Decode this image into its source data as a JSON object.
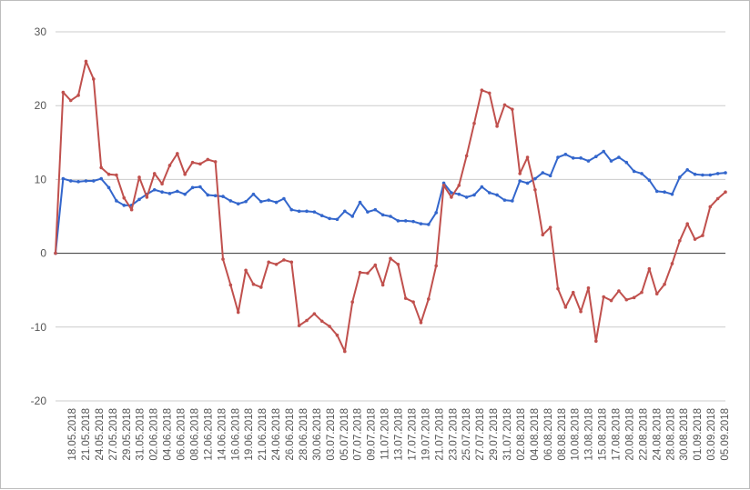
{
  "chart_data": {
    "type": "line",
    "title": "",
    "xlabel": "",
    "ylabel": "",
    "ylim": [
      -20,
      30
    ],
    "yticks": [
      -20,
      -10,
      0,
      10,
      20,
      30
    ],
    "grid": true,
    "legend": "none",
    "x_tick_labels": [
      "18.05.2018",
      "21.05.2018",
      "24.05.2018",
      "27.05.2018",
      "29.05.2018",
      "31.05.2018",
      "02.06.2018",
      "04.06.2018",
      "06.06.2018",
      "08.06.2018",
      "12.06.2018",
      "14.06.2018",
      "16.06.2018",
      "19.06.2018",
      "21.06.2018",
      "24.06.2018",
      "26.06.2018",
      "28.06.2018",
      "30.06.2018",
      "03.07.2018",
      "05.07.2018",
      "07.07.2018",
      "09.07.2018",
      "11.07.2018",
      "13.07.2018",
      "17.07.2018",
      "19.07.2018",
      "21.07.2018",
      "23.07.2018",
      "25.07.2018",
      "27.07.2018",
      "29.07.2018",
      "31.07.2018",
      "02.08.2018",
      "04.08.2018",
      "06.08.2018",
      "08.08.2018",
      "10.08.2018",
      "13.08.2018",
      "15.08.2018",
      "17.08.2018",
      "20.08.2018",
      "22.08.2018",
      "24.08.2018",
      "28.08.2018",
      "30.08.2018",
      "01.09.2018",
      "03.09.2018",
      "05.09.2018"
    ],
    "series": [
      {
        "color": "#3366cc",
        "values": [
          0,
          10.1,
          9.8,
          9.7,
          9.8,
          9.8,
          10.1,
          8.9,
          7.1,
          6.5,
          6.5,
          7.3,
          8.0,
          8.6,
          8.3,
          8.1,
          8.4,
          8.0,
          8.9,
          9.0,
          7.9,
          7.8,
          7.7,
          7.1,
          6.7,
          7.0,
          8.0,
          7.0,
          7.2,
          6.9,
          7.4,
          5.9,
          5.7,
          5.7,
          5.6,
          5.1,
          4.7,
          4.6,
          5.7,
          5.0,
          6.9,
          5.6,
          5.9,
          5.2,
          5.0,
          4.4,
          4.4,
          4.3,
          4.0,
          3.9,
          5.5,
          9.5,
          8.2,
          8.0,
          7.6,
          7.9,
          9.0,
          8.2,
          7.9,
          7.2,
          7.1,
          9.8,
          9.5,
          10.1,
          10.9,
          10.5,
          13.0,
          13.4,
          12.9,
          12.9,
          12.5,
          13.1,
          13.8,
          12.5,
          13.0,
          12.3,
          11.1,
          10.8,
          9.9,
          8.4,
          8.3,
          8.0,
          10.3,
          11.3,
          10.7,
          10.6,
          10.6,
          10.8,
          10.9
        ]
      },
      {
        "color": "#c0504d",
        "values": [
          0,
          21.8,
          20.7,
          21.4,
          26.0,
          23.6,
          11.6,
          10.7,
          10.6,
          7.5,
          5.9,
          10.3,
          7.6,
          10.8,
          9.4,
          11.9,
          13.5,
          10.7,
          12.3,
          12.1,
          12.7,
          12.4,
          -0.8,
          -4.3,
          -8.0,
          -2.3,
          -4.2,
          -4.6,
          -1.2,
          -1.5,
          -0.9,
          -1.2,
          -9.8,
          -9.1,
          -8.2,
          -9.2,
          -9.9,
          -11.1,
          -13.3,
          -6.6,
          -2.6,
          -2.7,
          -1.6,
          -4.3,
          -0.7,
          -1.5,
          -6.1,
          -6.6,
          -9.4,
          -6.2,
          -1.7,
          9.2,
          7.6,
          9.2,
          13.2,
          17.6,
          22.1,
          21.7,
          17.2,
          20.1,
          19.5,
          10.8,
          13.0,
          8.6,
          2.5,
          3.5,
          -4.8,
          -7.3,
          -5.3,
          -7.9,
          -4.7,
          -11.9,
          -5.9,
          -6.4,
          -5.1,
          -6.3,
          -6.0,
          -5.3,
          -2.1,
          -5.5,
          -4.2,
          -1.4,
          1.7,
          4.0,
          1.9,
          2.4,
          6.3,
          7.4,
          8.3
        ]
      }
    ]
  }
}
